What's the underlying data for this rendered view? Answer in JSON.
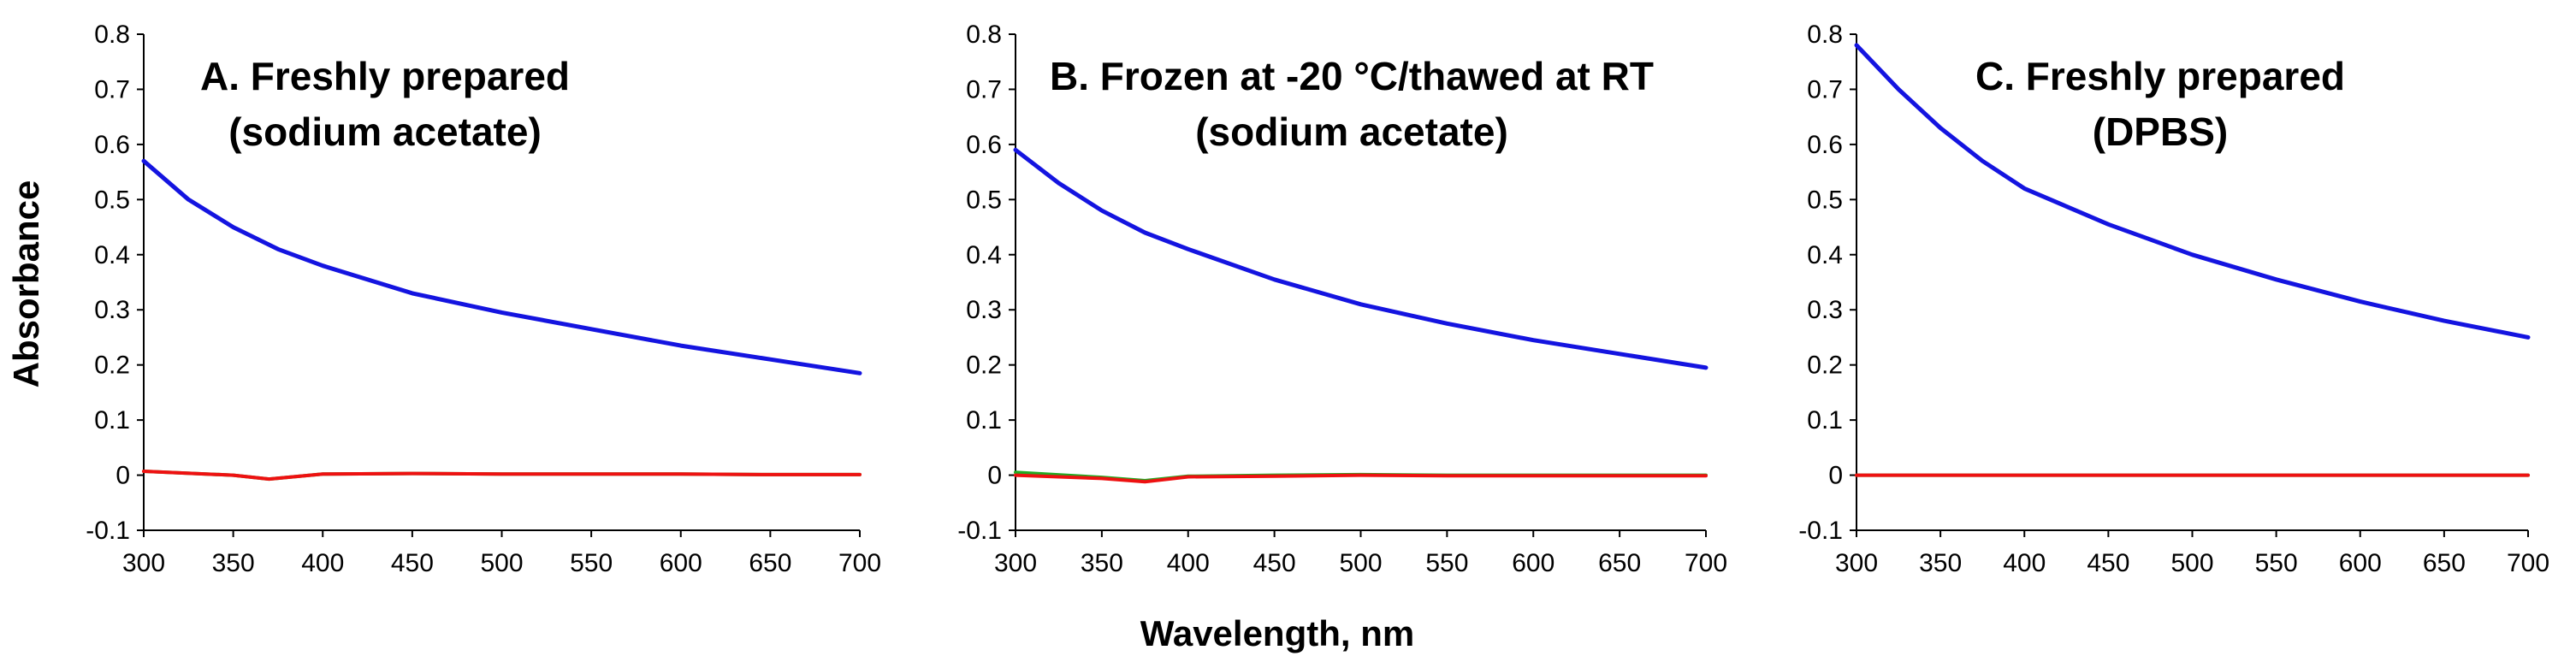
{
  "figure": {
    "ylabel": "Absorbance",
    "xlabel": "Wavelength, nm"
  },
  "colors": {
    "blue": "#1414e0",
    "red": "#ee1111",
    "green": "#22aa22",
    "axis": "#000000"
  },
  "chart_data": [
    {
      "type": "line",
      "title_lines": [
        "A. Freshly prepared",
        "(sodium acetate)"
      ],
      "xlim": [
        300,
        700
      ],
      "ylim": [
        -0.1,
        0.8
      ],
      "xticks": [
        300,
        350,
        400,
        450,
        500,
        550,
        600,
        650,
        700
      ],
      "yticks": [
        -0.1,
        0,
        0.1,
        0.2,
        0.3,
        0.4,
        0.5,
        0.6,
        0.7,
        0.8
      ],
      "series": [
        {
          "color": "blue",
          "x": [
            300,
            325,
            350,
            375,
            400,
            450,
            500,
            550,
            600,
            650,
            700
          ],
          "y": [
            0.57,
            0.5,
            0.45,
            0.41,
            0.38,
            0.33,
            0.295,
            0.265,
            0.235,
            0.21,
            0.185
          ]
        },
        {
          "color": "green",
          "x": [
            300,
            350,
            370,
            400,
            450,
            500,
            550,
            600,
            650,
            700
          ],
          "y": [
            0.007,
            0.0,
            -0.007,
            0.002,
            0.003,
            0.002,
            0.002,
            0.002,
            0.001,
            0.001
          ]
        },
        {
          "color": "red",
          "x": [
            300,
            350,
            370,
            400,
            450,
            500,
            550,
            600,
            650,
            700
          ],
          "y": [
            0.007,
            0.0,
            -0.007,
            0.002,
            0.003,
            0.002,
            0.002,
            0.002,
            0.001,
            0.001
          ]
        }
      ]
    },
    {
      "type": "line",
      "title_lines": [
        "B. Frozen at -20 °C/thawed at RT",
        "(sodium acetate)"
      ],
      "xlim": [
        300,
        700
      ],
      "ylim": [
        -0.1,
        0.8
      ],
      "xticks": [
        300,
        350,
        400,
        450,
        500,
        550,
        600,
        650,
        700
      ],
      "yticks": [
        -0.1,
        0,
        0.1,
        0.2,
        0.3,
        0.4,
        0.5,
        0.6,
        0.7,
        0.8
      ],
      "series": [
        {
          "color": "blue",
          "x": [
            300,
            325,
            350,
            375,
            400,
            450,
            500,
            550,
            600,
            650,
            700
          ],
          "y": [
            0.59,
            0.53,
            0.48,
            0.44,
            0.41,
            0.355,
            0.31,
            0.275,
            0.245,
            0.22,
            0.195
          ]
        },
        {
          "color": "green",
          "x": [
            300,
            350,
            375,
            400,
            450,
            500,
            550,
            600,
            650,
            700
          ],
          "y": [
            0.005,
            -0.004,
            -0.01,
            -0.002,
            0.0,
            0.001,
            0.0,
            0.0,
            0.0,
            0.0
          ]
        },
        {
          "color": "red",
          "x": [
            300,
            350,
            375,
            400,
            450,
            500,
            550,
            600,
            650,
            700
          ],
          "y": [
            0.0,
            -0.006,
            -0.012,
            -0.003,
            -0.002,
            0.0,
            -0.001,
            -0.001,
            -0.001,
            -0.001
          ]
        }
      ]
    },
    {
      "type": "line",
      "title_lines": [
        "C. Freshly prepared",
        "(DPBS)"
      ],
      "xlim": [
        300,
        700
      ],
      "ylim": [
        -0.1,
        0.8
      ],
      "xticks": [
        300,
        350,
        400,
        450,
        500,
        550,
        600,
        650,
        700
      ],
      "yticks": [
        -0.1,
        0,
        0.1,
        0.2,
        0.3,
        0.4,
        0.5,
        0.6,
        0.7,
        0.8
      ],
      "series": [
        {
          "color": "blue",
          "x": [
            300,
            325,
            350,
            375,
            400,
            450,
            500,
            550,
            600,
            650,
            700
          ],
          "y": [
            0.78,
            0.7,
            0.63,
            0.57,
            0.52,
            0.455,
            0.4,
            0.355,
            0.315,
            0.28,
            0.25
          ]
        },
        {
          "color": "green",
          "x": [
            300,
            400,
            500,
            600,
            700
          ],
          "y": [
            0.0,
            0.0,
            0.0,
            0.0,
            0.0
          ]
        },
        {
          "color": "red",
          "x": [
            300,
            400,
            500,
            600,
            700
          ],
          "y": [
            0.0,
            0.0,
            0.0,
            0.0,
            0.0
          ]
        }
      ]
    }
  ]
}
